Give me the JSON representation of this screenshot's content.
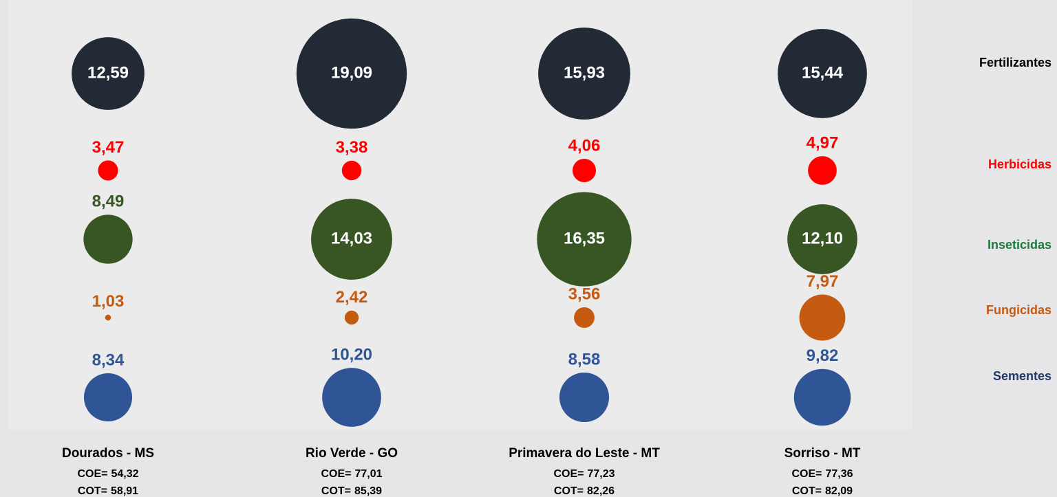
{
  "chart_data": {
    "type": "bubble",
    "categories": [
      "Dourados - MS",
      "Rio Verde - GO",
      "Primavera do Leste - MT",
      "Sorriso - MT"
    ],
    "series": [
      {
        "name": "Fertilizantes",
        "color": "#222a35",
        "legend_color": "#000000",
        "values": [
          12.59,
          19.09,
          15.93,
          15.44
        ],
        "value_labels": [
          "12,59",
          "19,09",
          "15,93",
          "15,44"
        ]
      },
      {
        "name": "Herbicidas",
        "color": "#ff0000",
        "legend_color": "#ff0000",
        "values": [
          3.47,
          3.38,
          4.06,
          4.97
        ],
        "value_labels": [
          "3,47",
          "3,38",
          "4,06",
          "4,97"
        ]
      },
      {
        "name": "Inseticidas",
        "color": "#375623",
        "legend_color": "#1e7a3c",
        "values": [
          8.49,
          14.03,
          16.35,
          12.1
        ],
        "value_labels": [
          "8,49",
          "14,03",
          "16,35",
          "12,10"
        ]
      },
      {
        "name": "Fungicidas",
        "color": "#c55a11",
        "legend_color": "#c55a11",
        "values": [
          1.03,
          2.42,
          3.56,
          7.97
        ],
        "value_labels": [
          "1,03",
          "2,42",
          "3,56",
          "7,97"
        ]
      },
      {
        "name": "Sementes",
        "color": "#2f5597",
        "legend_color": "#1f3864",
        "values": [
          8.34,
          10.2,
          8.58,
          9.82
        ],
        "value_labels": [
          "8,34",
          "10,20",
          "8,58",
          "9,82"
        ]
      }
    ],
    "coe": {
      "label": "COE=",
      "values": [
        54.32,
        77.01,
        77.23,
        77.36
      ],
      "value_labels": [
        "54,32",
        "77,01",
        "77,23",
        "77,36"
      ]
    },
    "cot": {
      "label": "COT=",
      "values": [
        58.91,
        85.39,
        82.26,
        82.09
      ],
      "value_labels": [
        "58,91",
        "85,39",
        "82,26",
        "82,09"
      ]
    }
  }
}
